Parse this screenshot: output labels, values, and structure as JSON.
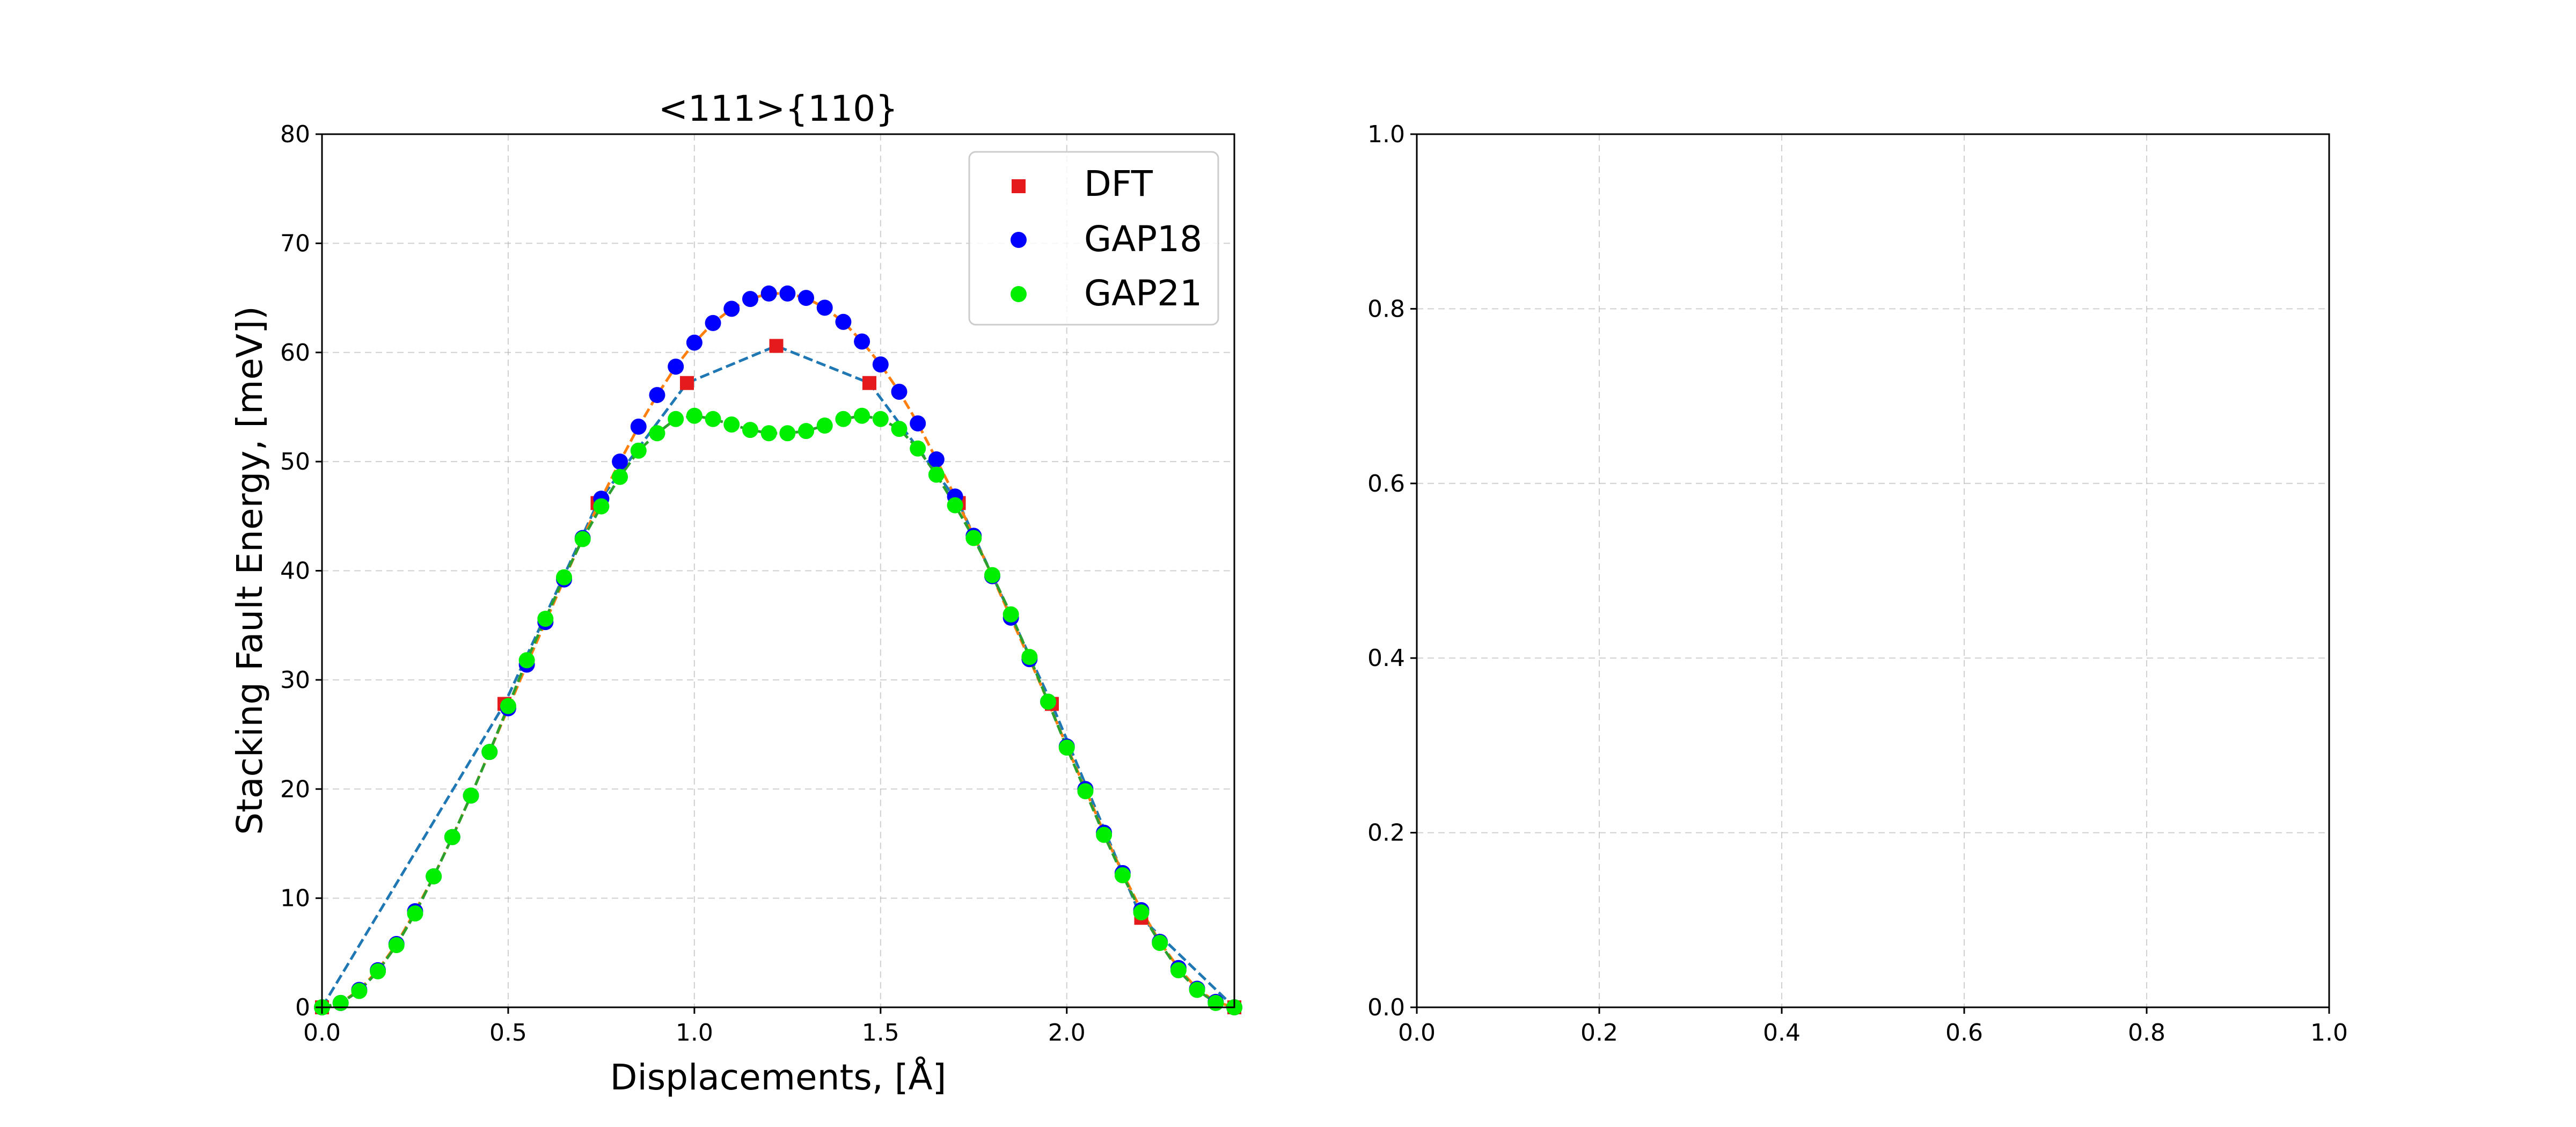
{
  "chart_data": [
    {
      "type": "line",
      "title": "<111>{110}",
      "xlabel": "Displacements, [Å]",
      "ylabel": "Stacking Fault Energy, [meV])",
      "xlim": [
        0,
        2.45
      ],
      "ylim": [
        0,
        80
      ],
      "xticks": [
        0.0,
        0.5,
        1.0,
        1.5,
        2.0
      ],
      "yticks": [
        0,
        10,
        20,
        30,
        40,
        50,
        60,
        70,
        80
      ],
      "xtick_labels": [
        "0.0",
        "0.5",
        "1.0",
        "1.5",
        "2.0"
      ],
      "ytick_labels": [
        "0",
        "10",
        "20",
        "30",
        "40",
        "50",
        "60",
        "70",
        "80"
      ],
      "grid": true,
      "legend_position": "top-right",
      "series": [
        {
          "name": "DFT",
          "marker": "square",
          "color": "#e41a1c",
          "line_color": "#1f77b4",
          "line_style": "dashed",
          "x": [
            0.0,
            0.49,
            0.74,
            0.98,
            1.22,
            1.47,
            1.71,
            1.96,
            2.2,
            2.45
          ],
          "y": [
            0.0,
            27.8,
            46.2,
            57.2,
            60.6,
            57.2,
            46.2,
            27.8,
            8.2,
            0.0
          ]
        },
        {
          "name": "GAP18",
          "marker": "circle",
          "color": "#0000ff",
          "line_color": "#ff7f0e",
          "line_style": "dashed",
          "x": [
            0.0,
            0.05,
            0.1,
            0.15,
            0.2,
            0.25,
            0.3,
            0.35,
            0.4,
            0.45,
            0.5,
            0.55,
            0.6,
            0.65,
            0.7,
            0.75,
            0.8,
            0.85,
            0.9,
            0.95,
            1.0,
            1.05,
            1.1,
            1.15,
            1.2,
            1.25,
            1.3,
            1.35,
            1.4,
            1.45,
            1.5,
            1.55,
            1.6,
            1.65,
            1.7,
            1.75,
            1.8,
            1.85,
            1.9,
            1.95,
            2.0,
            2.05,
            2.1,
            2.15,
            2.2,
            2.25,
            2.3,
            2.35,
            2.4,
            2.45
          ],
          "y": [
            0.0,
            0.4,
            1.6,
            3.4,
            5.8,
            8.8,
            12.0,
            15.6,
            19.4,
            23.4,
            27.4,
            31.4,
            35.3,
            39.2,
            43.0,
            46.6,
            50.0,
            53.2,
            56.1,
            58.7,
            60.9,
            62.7,
            64.0,
            64.9,
            65.4,
            65.4,
            65.0,
            64.1,
            62.8,
            61.0,
            58.9,
            56.4,
            53.5,
            50.2,
            46.8,
            43.2,
            39.5,
            35.7,
            31.9,
            28.0,
            23.9,
            20.0,
            16.0,
            12.3,
            8.9,
            6.0,
            3.6,
            1.7,
            0.5,
            0.0
          ]
        },
        {
          "name": "GAP21",
          "marker": "circle",
          "color": "#00ee00",
          "line_color": "#2ca02c",
          "line_style": "dashed",
          "x": [
            0.0,
            0.05,
            0.1,
            0.15,
            0.2,
            0.25,
            0.3,
            0.35,
            0.4,
            0.45,
            0.5,
            0.55,
            0.6,
            0.65,
            0.7,
            0.75,
            0.8,
            0.85,
            0.9,
            0.95,
            1.0,
            1.05,
            1.1,
            1.15,
            1.2,
            1.25,
            1.3,
            1.35,
            1.4,
            1.45,
            1.5,
            1.55,
            1.6,
            1.65,
            1.7,
            1.75,
            1.8,
            1.85,
            1.9,
            1.95,
            2.0,
            2.05,
            2.1,
            2.15,
            2.2,
            2.25,
            2.3,
            2.35,
            2.4,
            2.45
          ],
          "y": [
            0.0,
            0.4,
            1.5,
            3.3,
            5.7,
            8.6,
            12.0,
            15.6,
            19.4,
            23.4,
            27.6,
            31.8,
            35.6,
            39.4,
            42.9,
            45.9,
            48.6,
            51.0,
            52.6,
            53.9,
            54.2,
            53.9,
            53.4,
            52.9,
            52.6,
            52.6,
            52.8,
            53.3,
            53.9,
            54.2,
            53.9,
            53.0,
            51.2,
            48.8,
            46.0,
            43.0,
            39.6,
            36.0,
            32.1,
            28.0,
            23.8,
            19.8,
            15.8,
            12.1,
            8.7,
            5.9,
            3.4,
            1.6,
            0.4,
            0.0
          ]
        }
      ]
    },
    {
      "type": "line",
      "title": "",
      "xlabel": "",
      "ylabel": "",
      "xlim": [
        0,
        1
      ],
      "ylim": [
        0,
        1
      ],
      "xticks": [
        0.0,
        0.2,
        0.4,
        0.6,
        0.8,
        1.0
      ],
      "yticks": [
        0.0,
        0.2,
        0.4,
        0.6,
        0.8,
        1.0
      ],
      "xtick_labels": [
        "0.0",
        "0.2",
        "0.4",
        "0.6",
        "0.8",
        "1.0"
      ],
      "ytick_labels": [
        "0.0",
        "0.2",
        "0.4",
        "0.6",
        "0.8",
        "1.0"
      ],
      "grid": true,
      "series": []
    }
  ]
}
